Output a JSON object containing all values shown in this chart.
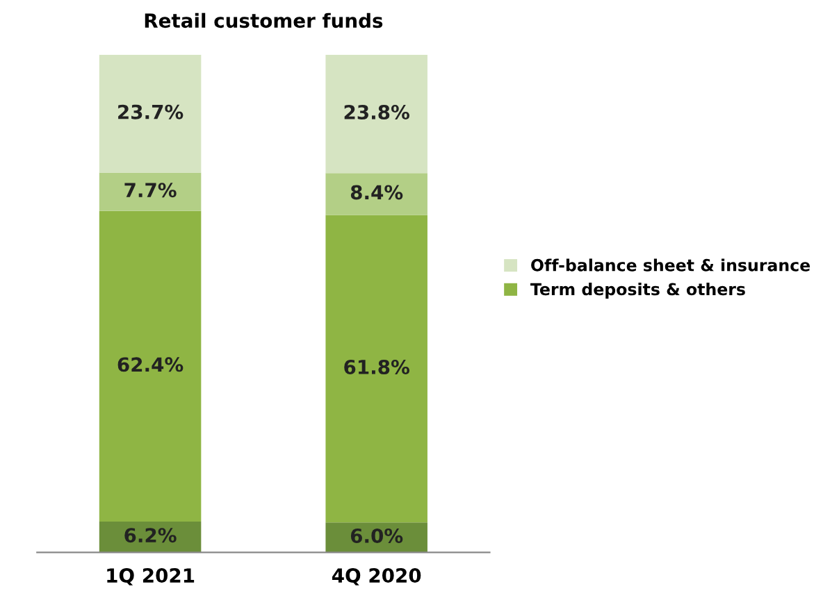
{
  "chart_data": {
    "type": "bar",
    "title": "Retail customer funds",
    "categories": [
      "1Q 2021",
      "4Q 2020"
    ],
    "stacked": true,
    "legend": "right",
    "grid": false,
    "series": [
      {
        "color": "#6b8e3a",
        "values": [
          6.2,
          6.0
        ],
        "value_labels": [
          "6.2%",
          "6.0%"
        ]
      },
      {
        "name": "Term deposits & others",
        "color": "#8fb544",
        "values": [
          62.4,
          61.8
        ],
        "value_labels": [
          "62.4%",
          "61.8%"
        ]
      },
      {
        "color": "#b3cf86",
        "values": [
          7.7,
          8.4
        ],
        "value_labels": [
          "7.7%",
          "8.4%"
        ]
      },
      {
        "name": "Off-balance sheet & insurance",
        "color": "#d6e4c2",
        "values": [
          23.7,
          23.8
        ],
        "value_labels": [
          "23.7%",
          "23.8%"
        ]
      }
    ]
  }
}
